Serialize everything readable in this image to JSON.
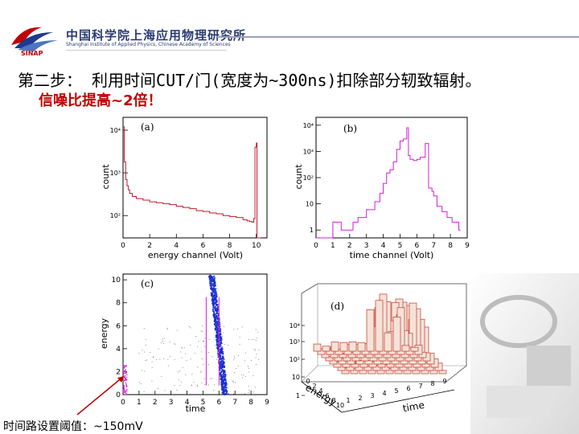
{
  "header": {
    "institute_cn": "中国科学院上海应用物理研究所",
    "institute_en": "Shanghai Institute of Applied Physics, Chinese Academy of Sciences",
    "logo_text": "SINAP"
  },
  "step_text": "第二步： 利用时间CUT/门(宽度为~300ns)扣除部分轫致辐射。",
  "snr_text": "信噪比提高~2倍！",
  "bottom_note": "时间路设置阈值：~150mV",
  "colors": {
    "accent_red": "#c00000",
    "hist_red": "#c0182a",
    "hist_magenta": "#d21edc",
    "scatter_blue": "#1a2fd0",
    "lego_red": "#c23a2a"
  },
  "chart_data": [
    {
      "type": "line",
      "panel_label": "(a)",
      "xlabel": "energy channel (Volt)",
      "ylabel": "count",
      "x_ticks": [
        "0",
        "2",
        "4",
        "6",
        "8",
        "10"
      ],
      "y_ticks": [
        "10²",
        "10³",
        "10⁴"
      ],
      "y_scale": "log",
      "xlim": [
        0,
        10.8
      ],
      "ylim": [
        30,
        20000
      ],
      "series": [
        {
          "x": [
            0.05,
            0.1,
            0.2,
            0.3,
            0.4,
            0.5,
            0.7,
            1.0,
            1.5,
            2.0,
            2.5,
            3.0,
            3.5,
            4.0,
            4.5,
            5.0,
            5.5,
            6.0,
            6.5,
            7.0,
            7.5,
            8.0,
            8.5,
            9.0,
            9.3,
            9.5,
            9.7,
            9.8,
            9.9,
            10.0,
            10.05,
            10.1,
            10.2
          ],
          "y": [
            12000,
            1800,
            700,
            500,
            400,
            330,
            280,
            250,
            230,
            210,
            200,
            190,
            180,
            165,
            155,
            145,
            130,
            125,
            115,
            110,
            100,
            95,
            90,
            80,
            75,
            72,
            70,
            85,
            4000,
            5000,
            30,
            30,
            30
          ]
        }
      ]
    },
    {
      "type": "line",
      "panel_label": "(b)",
      "xlabel": "time channel (Volt)",
      "ylabel": "count",
      "x_ticks": [
        "0",
        "1",
        "2",
        "3",
        "4",
        "5",
        "6",
        "7",
        "8",
        "9"
      ],
      "y_ticks": [
        "1",
        "10",
        "10²",
        "10³",
        "10⁴"
      ],
      "y_scale": "log",
      "xlim": [
        0,
        9
      ],
      "ylim": [
        0.5,
        20000
      ],
      "series": [
        {
          "x": [
            0.0,
            1.0,
            1.5,
            2.2,
            2.5,
            3.0,
            3.5,
            3.8,
            4.0,
            4.2,
            4.4,
            4.6,
            4.8,
            5.0,
            5.2,
            5.4,
            5.5,
            5.6,
            5.8,
            6.0,
            6.2,
            6.5,
            6.7,
            6.9,
            7.0,
            7.2,
            7.5,
            7.8,
            8.1,
            8.5
          ],
          "y": [
            0.5,
            2,
            1,
            2,
            3,
            6,
            12,
            25,
            60,
            150,
            200,
            400,
            1200,
            2500,
            3000,
            8000,
            700,
            500,
            450,
            500,
            600,
            2000,
            40,
            30,
            20,
            8,
            5,
            3,
            2,
            1
          ]
        }
      ]
    },
    {
      "type": "scatter",
      "panel_label": "(c)",
      "xlabel": "time",
      "ylabel": "energy",
      "x_ticks": [
        "0",
        "1",
        "2",
        "3",
        "4",
        "5",
        "6",
        "7",
        "8",
        "9"
      ],
      "y_ticks": [
        "0",
        "2",
        "4",
        "6",
        "8",
        "10"
      ],
      "xlim": [
        0,
        9
      ],
      "ylim": [
        0,
        10.5
      ],
      "time_gate": [
        5.2,
        6.0
      ]
    },
    {
      "type": "heatmap",
      "panel_label": "(d)",
      "xlabel": "time",
      "ylabel": "energy",
      "x_ticks": [
        "1",
        "2",
        "3",
        "4",
        "5",
        "6",
        "7",
        "8",
        "9"
      ],
      "y_ticks": [
        "0",
        "2",
        "4",
        "6",
        "8",
        "10"
      ],
      "z_ticks": [
        "1",
        "10",
        "10²",
        "10³",
        "10⁴"
      ],
      "z_scale": "log"
    }
  ]
}
